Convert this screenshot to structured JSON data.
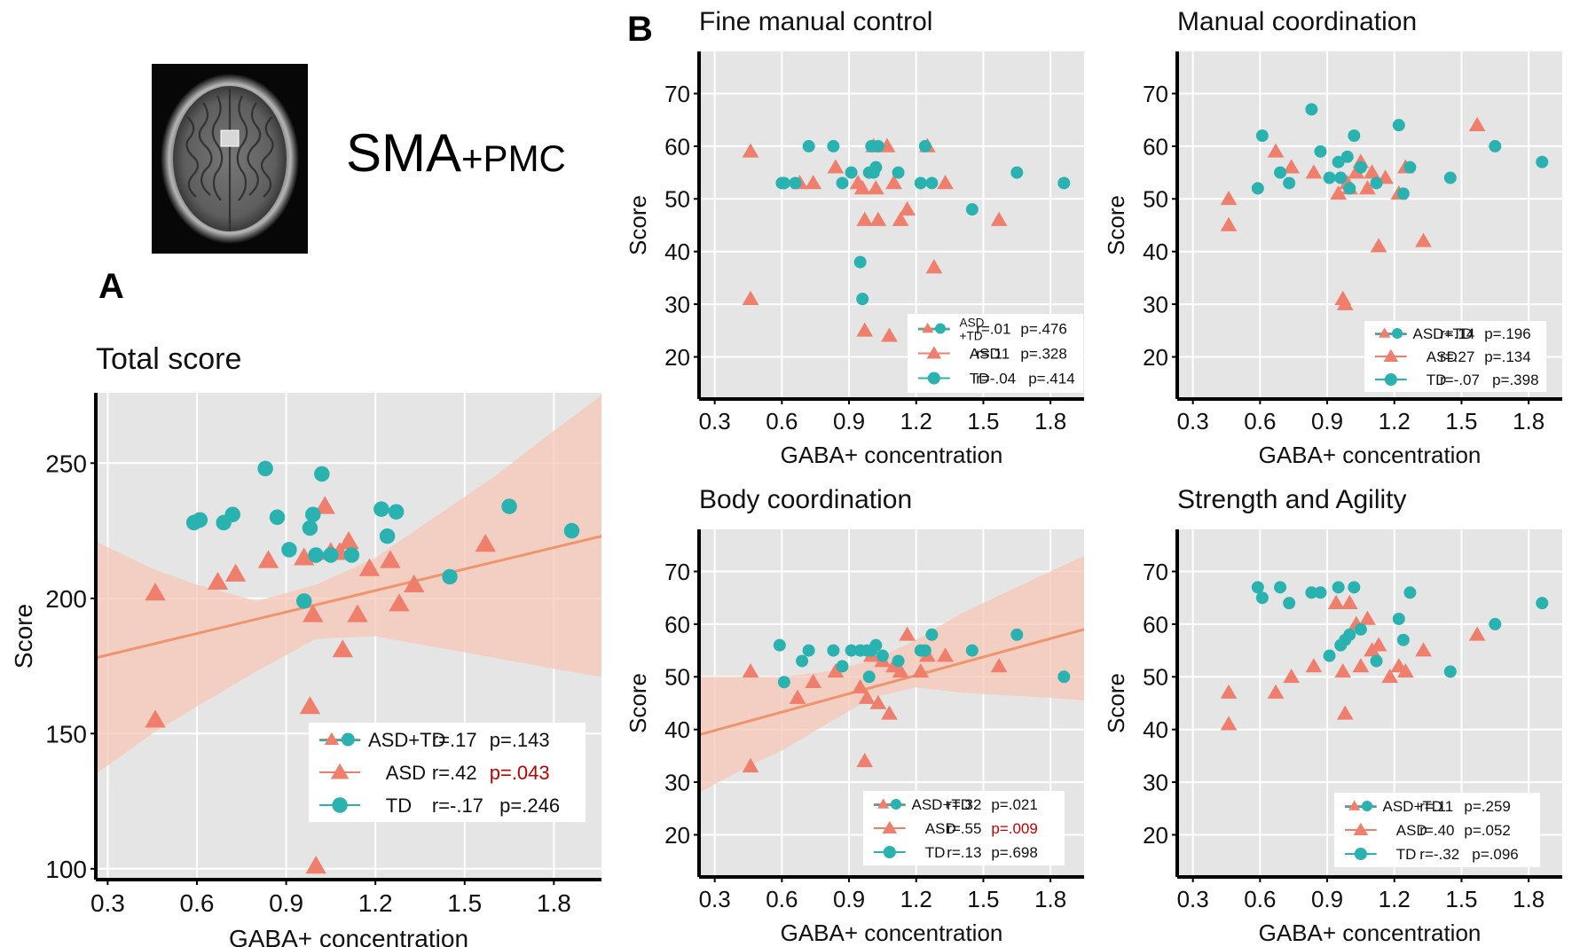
{
  "figure": {
    "roi_label_main": "SMA",
    "roi_label_sub": "+PMC",
    "panel_a_letter": "A",
    "panel_b_letter": "B"
  },
  "colors": {
    "asd": "#EF7F6C",
    "td": "#2AB2B0",
    "panel_bg": "#E5E5E5",
    "grid": "#FFFFFF",
    "ci_band": "#F5C7B6",
    "fit_line": "#F0946D",
    "significant_p": "#C00000"
  },
  "chart_data": [
    {
      "id": "total",
      "type": "scatter",
      "title": "Total score",
      "xlabel": "GABA+ concentration",
      "ylabel": "Score",
      "xlim": [
        0.26,
        1.96
      ],
      "ylim": [
        96,
        276
      ],
      "xticks": [
        0.3,
        0.6,
        0.9,
        1.2,
        1.5,
        1.8
      ],
      "xtick_labels": [
        "0.3",
        "0.6",
        "0.9",
        "1.2",
        "1.5",
        "1.8"
      ],
      "yticks": [
        100,
        150,
        200,
        250
      ],
      "ytick_labels": [
        "100",
        "150",
        "200",
        "250"
      ],
      "grid": true,
      "legend": {
        "placement": "bottom-right",
        "entries": [
          {
            "label": "ASD+TD",
            "stat_r": "r=.17",
            "stat_p": "p=.143",
            "p_significant": false
          },
          {
            "label": "ASD",
            "stat_r": "r=.42",
            "stat_p": "p=.043",
            "p_significant": true
          },
          {
            "label": "TD",
            "stat_r": "r=-.17",
            "stat_p": "p=.246",
            "p_significant": false
          }
        ]
      },
      "fit_line": {
        "x": [
          0.26,
          1.96
        ],
        "y": [
          178,
          223
        ]
      },
      "ci_band": {
        "x": [
          0.26,
          0.45,
          0.6,
          0.8,
          1.0,
          1.2,
          1.4,
          1.6,
          1.8,
          1.96
        ],
        "lower": [
          135,
          150,
          160,
          173,
          185,
          186,
          182,
          178,
          174,
          171
        ],
        "upper": [
          221,
          211,
          205,
          199,
          205,
          215,
          230,
          245,
          262,
          275
        ]
      },
      "series": [
        {
          "name": "ASD",
          "marker": "triangle",
          "x": [
            0.46,
            0.46,
            0.67,
            0.73,
            0.84,
            0.96,
            0.98,
            0.99,
            1.0,
            1.03,
            1.05,
            1.08,
            1.09,
            1.11,
            1.14,
            1.18,
            1.25,
            1.28,
            1.33,
            1.57
          ],
          "y": [
            202,
            155,
            206,
            209,
            214,
            215,
            160,
            194,
            101,
            234,
            217,
            217,
            181,
            221,
            194,
            211,
            214,
            198,
            205,
            220
          ]
        },
        {
          "name": "TD",
          "marker": "circle",
          "x": [
            0.59,
            0.61,
            0.69,
            0.72,
            0.83,
            0.87,
            0.91,
            0.96,
            0.98,
            0.99,
            1.0,
            1.02,
            1.05,
            1.12,
            1.22,
            1.24,
            1.27,
            1.45,
            1.65,
            1.86
          ],
          "y": [
            228,
            229,
            228,
            231,
            248,
            230,
            218,
            199,
            226,
            231,
            216,
            246,
            216,
            216,
            233,
            223,
            232,
            208,
            234,
            225
          ]
        }
      ]
    },
    {
      "id": "fine",
      "type": "scatter",
      "title": "Fine manual control",
      "xlabel": "GABA+ concentration",
      "ylabel": "Score",
      "xlim": [
        0.23,
        1.95
      ],
      "ylim": [
        12,
        78
      ],
      "xticks": [
        0.3,
        0.6,
        0.9,
        1.2,
        1.5,
        1.8
      ],
      "xtick_labels": [
        "0.3",
        "0.6",
        "0.9",
        "1.2",
        "1.5",
        "1.8"
      ],
      "yticks": [
        20,
        30,
        40,
        50,
        60,
        70
      ],
      "ytick_labels": [
        "20",
        "30",
        "40",
        "50",
        "60",
        "70"
      ],
      "grid": true,
      "legend": {
        "placement": "bottom-right",
        "entries": [
          {
            "label": "ASD +TD",
            "stat_r": "r=.01",
            "stat_p": "p=.476",
            "p_significant": false
          },
          {
            "label": "ASD",
            "stat_r": "r=.11",
            "stat_p": "p=.328",
            "p_significant": false
          },
          {
            "label": "TD",
            "stat_r": "r=-.04",
            "stat_p": "p=.414",
            "p_significant": false
          }
        ]
      },
      "series": [
        {
          "name": "ASD",
          "marker": "triangle",
          "x": [
            0.46,
            0.46,
            0.68,
            0.74,
            0.84,
            0.94,
            0.96,
            0.97,
            0.97,
            1.01,
            1.02,
            1.03,
            1.07,
            1.08,
            1.1,
            1.13,
            1.16,
            1.25,
            1.28,
            1.33,
            1.57
          ],
          "y": [
            59,
            31,
            53,
            53,
            56,
            53,
            52,
            46,
            25,
            60,
            52,
            46,
            60,
            24,
            53,
            46,
            48,
            60,
            37,
            53,
            46
          ]
        },
        {
          "name": "TD",
          "marker": "circle",
          "x": [
            0.6,
            0.61,
            0.66,
            0.72,
            0.83,
            0.87,
            0.91,
            0.95,
            0.96,
            0.99,
            1.0,
            1.01,
            1.02,
            1.03,
            1.12,
            1.22,
            1.24,
            1.27,
            1.45,
            1.65,
            1.86
          ],
          "y": [
            53,
            53,
            53,
            60,
            60,
            53,
            55,
            38,
            31,
            55,
            60,
            55,
            56,
            60,
            55,
            53,
            60,
            53,
            48,
            55,
            53
          ]
        }
      ]
    },
    {
      "id": "manual",
      "type": "scatter",
      "title": "Manual coordination",
      "xlabel": "GABA+ concentration",
      "ylabel": "Score",
      "xlim": [
        0.23,
        1.95
      ],
      "ylim": [
        12,
        78
      ],
      "xticks": [
        0.3,
        0.6,
        0.9,
        1.2,
        1.5,
        1.8
      ],
      "xtick_labels": [
        "0.3",
        "0.6",
        "0.9",
        "1.2",
        "1.5",
        "1.8"
      ],
      "yticks": [
        20,
        30,
        40,
        50,
        60,
        70
      ],
      "ytick_labels": [
        "20",
        "30",
        "40",
        "50",
        "60",
        "70"
      ],
      "grid": true,
      "legend": {
        "placement": "bottom-right",
        "entries": [
          {
            "label": "ASD+TD",
            "stat_r": "r=.14",
            "stat_p": "p=.196",
            "p_significant": false
          },
          {
            "label": "ASD",
            "stat_r": "r=.27",
            "stat_p": "p=.134",
            "p_significant": false
          },
          {
            "label": "TD",
            "stat_r": "r=-.07",
            "stat_p": "p=.398",
            "p_significant": false
          }
        ]
      },
      "series": [
        {
          "name": "ASD",
          "marker": "triangle",
          "x": [
            0.46,
            0.46,
            0.67,
            0.74,
            0.84,
            0.95,
            0.97,
            0.98,
            0.99,
            1.0,
            1.03,
            1.05,
            1.08,
            1.1,
            1.13,
            1.16,
            1.22,
            1.25,
            1.33,
            1.57
          ],
          "y": [
            50,
            45,
            59,
            56,
            55,
            51,
            31,
            30,
            53,
            52,
            55,
            57,
            52,
            55,
            41,
            54,
            51,
            56,
            42,
            64
          ]
        },
        {
          "name": "TD",
          "marker": "circle",
          "x": [
            0.59,
            0.61,
            0.69,
            0.73,
            0.83,
            0.87,
            0.91,
            0.95,
            0.96,
            0.99,
            1.0,
            1.02,
            1.05,
            1.12,
            1.22,
            1.24,
            1.27,
            1.45,
            1.65,
            1.86
          ],
          "y": [
            52,
            62,
            55,
            53,
            67,
            59,
            54,
            57,
            54,
            58,
            52,
            62,
            56,
            53,
            64,
            51,
            56,
            54,
            60,
            57
          ]
        }
      ]
    },
    {
      "id": "body",
      "type": "scatter",
      "title": "Body coordination",
      "xlabel": "GABA+ concentration",
      "ylabel": "Score",
      "xlim": [
        0.23,
        1.95
      ],
      "ylim": [
        12,
        78
      ],
      "xticks": [
        0.3,
        0.6,
        0.9,
        1.2,
        1.5,
        1.8
      ],
      "xtick_labels": [
        "0.3",
        "0.6",
        "0.9",
        "1.2",
        "1.5",
        "1.8"
      ],
      "yticks": [
        20,
        30,
        40,
        50,
        60,
        70
      ],
      "ytick_labels": [
        "20",
        "30",
        "40",
        "50",
        "60",
        "70"
      ],
      "grid": true,
      "legend": {
        "placement": "bottom-right",
        "entries": [
          {
            "label": "ASD+TD",
            "stat_r": "r=.32",
            "stat_p": "p=.021",
            "p_significant": false
          },
          {
            "label": "ASD",
            "stat_r": "r=.55",
            "stat_p": "p=.009",
            "p_significant": true
          },
          {
            "label": "TD",
            "stat_r": "r=.13",
            "stat_p": "p=.698",
            "p_significant": false
          }
        ]
      },
      "fit_line": {
        "x": [
          0.23,
          1.95
        ],
        "y": [
          39,
          59
        ]
      },
      "ci_band": {
        "x": [
          0.23,
          0.45,
          0.6,
          0.8,
          1.0,
          1.2,
          1.4,
          1.6,
          1.8,
          1.95
        ],
        "lower": [
          28,
          33,
          36,
          41,
          46,
          48,
          47,
          46.5,
          46,
          45.5
        ],
        "upper": [
          50,
          50,
          50,
          51,
          53,
          57,
          62,
          66,
          70,
          73
        ]
      },
      "series": [
        {
          "name": "ASD",
          "marker": "triangle",
          "x": [
            0.46,
            0.46,
            0.67,
            0.74,
            0.84,
            0.95,
            0.97,
            0.98,
            1.0,
            1.03,
            1.05,
            1.08,
            1.1,
            1.13,
            1.16,
            1.22,
            1.25,
            1.33,
            1.57
          ],
          "y": [
            51,
            33,
            46,
            49,
            51,
            48,
            34,
            46,
            54,
            45,
            53,
            43,
            52,
            51,
            58,
            51,
            54,
            54,
            52
          ]
        },
        {
          "name": "TD",
          "marker": "circle",
          "x": [
            0.59,
            0.61,
            0.69,
            0.72,
            0.83,
            0.87,
            0.91,
            0.95,
            0.98,
            0.99,
            1.0,
            1.02,
            1.05,
            1.12,
            1.22,
            1.24,
            1.27,
            1.45,
            1.65,
            1.86
          ],
          "y": [
            56,
            49,
            53,
            55,
            55,
            52,
            55,
            55,
            55,
            50,
            55,
            56,
            54,
            53,
            55,
            55,
            58,
            55,
            58,
            50
          ]
        }
      ]
    },
    {
      "id": "strength",
      "type": "scatter",
      "title": "Strength and Agility",
      "xlabel": "GABA+ concentration",
      "ylabel": "Score",
      "xlim": [
        0.23,
        1.95
      ],
      "ylim": [
        12,
        78
      ],
      "xticks": [
        0.3,
        0.6,
        0.9,
        1.2,
        1.5,
        1.8
      ],
      "xtick_labels": [
        "0.3",
        "0.6",
        "0.9",
        "1.2",
        "1.5",
        "1.8"
      ],
      "yticks": [
        20,
        30,
        40,
        50,
        60,
        70
      ],
      "ytick_labels": [
        "20",
        "30",
        "40",
        "50",
        "60",
        "70"
      ],
      "grid": true,
      "legend": {
        "placement": "bottom-right",
        "entries": [
          {
            "label": "ASD+TD",
            "stat_r": "r=.11",
            "stat_p": "p=.259",
            "p_significant": false
          },
          {
            "label": "ASD",
            "stat_r": "r=.40",
            "stat_p": "p=.052",
            "p_significant": false
          },
          {
            "label": "TD",
            "stat_r": "r=-.32",
            "stat_p": "p=.096",
            "p_significant": false
          }
        ]
      },
      "series": [
        {
          "name": "ASD",
          "marker": "triangle",
          "x": [
            0.46,
            0.46,
            0.67,
            0.74,
            0.84,
            0.94,
            0.97,
            0.98,
            1.0,
            1.03,
            1.05,
            1.08,
            1.1,
            1.13,
            1.18,
            1.22,
            1.25,
            1.33,
            1.57
          ],
          "y": [
            47,
            41,
            47,
            50,
            52,
            64,
            51,
            43,
            64,
            60,
            52,
            61,
            55,
            56,
            50,
            52,
            51,
            55,
            58
          ]
        },
        {
          "name": "TD",
          "marker": "circle",
          "x": [
            0.59,
            0.61,
            0.69,
            0.73,
            0.83,
            0.87,
            0.91,
            0.95,
            0.96,
            0.98,
            1.0,
            1.02,
            1.05,
            1.12,
            1.22,
            1.24,
            1.27,
            1.45,
            1.65,
            1.86
          ],
          "y": [
            67,
            65,
            67,
            64,
            66,
            66,
            54,
            67,
            56,
            57,
            58,
            67,
            59,
            53,
            61,
            57,
            66,
            51,
            60,
            64
          ]
        }
      ]
    }
  ]
}
